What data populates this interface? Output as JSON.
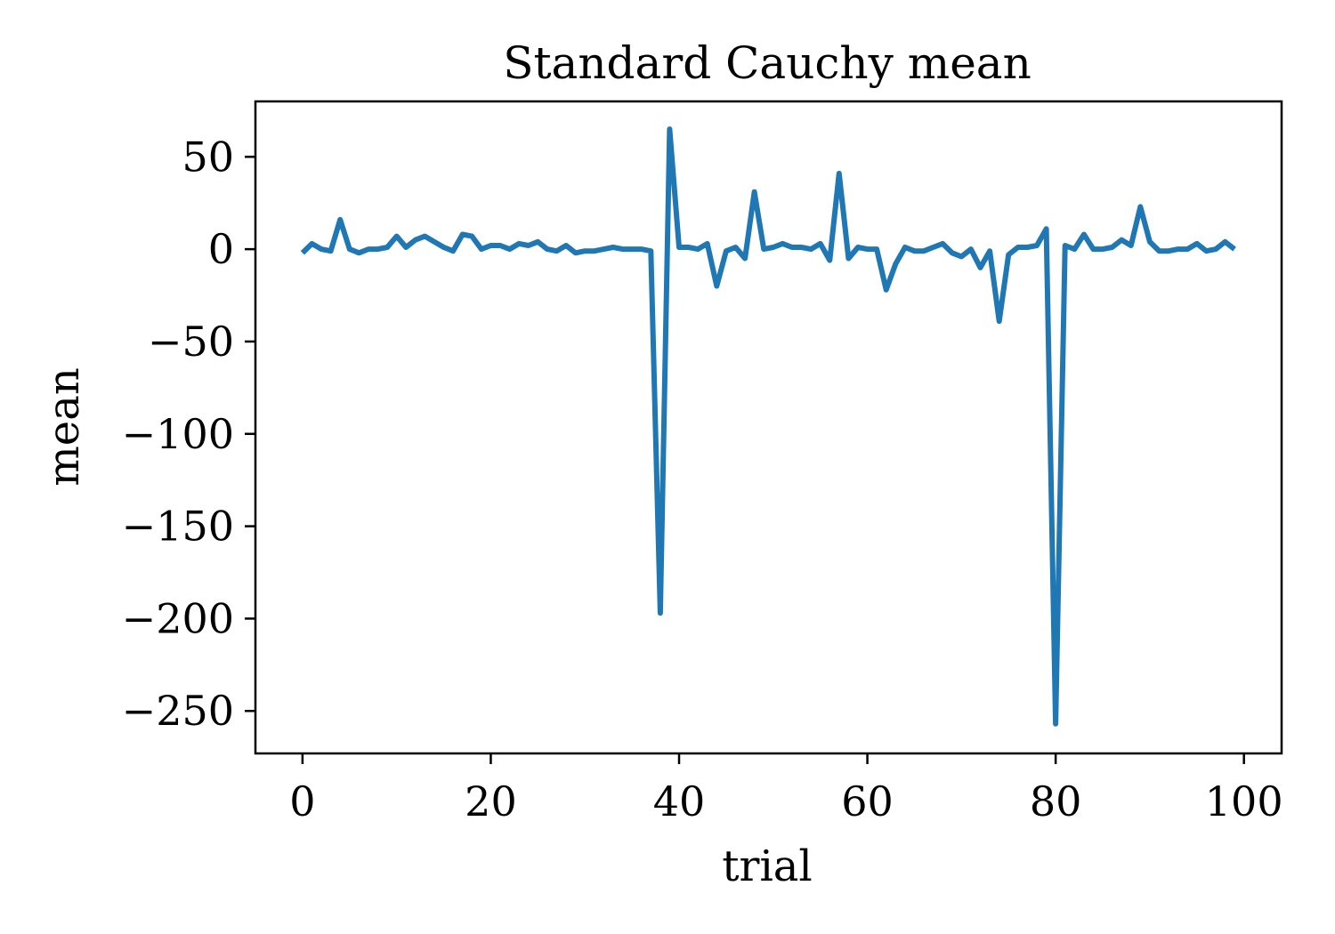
{
  "chart_data": {
    "type": "line",
    "title": "Standard Cauchy mean",
    "xlabel": "trial",
    "ylabel": "mean",
    "xlim": [
      -5,
      104
    ],
    "ylim": [
      -273,
      80
    ],
    "xticks": [
      0,
      20,
      40,
      60,
      80,
      100
    ],
    "xtick_labels": [
      "0",
      "20",
      "40",
      "60",
      "80",
      "100"
    ],
    "yticks": [
      50,
      0,
      -50,
      -100,
      -150,
      -200,
      -250
    ],
    "ytick_labels": [
      "50",
      "0",
      "−50",
      "−100",
      "−150",
      "−200",
      "−250"
    ],
    "grid": false,
    "line_color": "#1f77b4",
    "series": [
      {
        "x": [
          0,
          1,
          2,
          3,
          4,
          5,
          6,
          7,
          8,
          9,
          10,
          11,
          12,
          13,
          14,
          15,
          16,
          17,
          18,
          19,
          20,
          21,
          22,
          23,
          24,
          25,
          26,
          27,
          28,
          29,
          30,
          31,
          32,
          33,
          34,
          35,
          36,
          37,
          38,
          39,
          40,
          41,
          42,
          43,
          44,
          45,
          46,
          47,
          48,
          49,
          50,
          51,
          52,
          53,
          54,
          55,
          56,
          57,
          58,
          59,
          60,
          61,
          62,
          63,
          64,
          65,
          66,
          67,
          68,
          69,
          70,
          71,
          72,
          73,
          74,
          75,
          76,
          77,
          78,
          79,
          80,
          81,
          82,
          83,
          84,
          85,
          86,
          87,
          88,
          89,
          90,
          91,
          92,
          93,
          94,
          95,
          96,
          97,
          98,
          99
        ],
        "values": [
          -2,
          3,
          0,
          -1,
          16,
          0,
          -2,
          0,
          0,
          1,
          7,
          1,
          5,
          7,
          4,
          1,
          -1,
          8,
          7,
          0,
          2,
          2,
          0,
          3,
          2,
          4,
          0,
          -1,
          2,
          -2,
          -1,
          -1,
          0,
          1,
          0,
          0,
          0,
          -1,
          -197,
          65,
          1,
          1,
          0,
          3,
          -20,
          -1,
          1,
          -5,
          31,
          0,
          1,
          3,
          1,
          1,
          0,
          3,
          -6,
          41,
          -5,
          1,
          0,
          0,
          -22,
          -8,
          1,
          -1,
          -1,
          1,
          3,
          -2,
          -4,
          0,
          -10,
          -1,
          -39,
          -3,
          1,
          1,
          2,
          11,
          -257,
          2,
          0,
          8,
          0,
          0,
          1,
          5,
          2,
          23,
          4,
          -1,
          -1,
          0,
          0,
          3,
          -1,
          0,
          4,
          0
        ]
      }
    ]
  }
}
